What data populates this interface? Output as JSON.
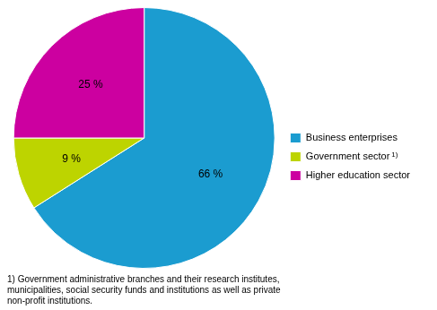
{
  "chart_data": {
    "type": "pie",
    "categories": [
      "Business enterprises",
      "Government sector",
      "Higher education sector"
    ],
    "values": [
      66,
      9,
      25
    ],
    "value_labels": [
      "66 %",
      "9 %",
      "25 %"
    ],
    "colors": [
      "#1B9CD0",
      "#BDD400",
      "#CC00A0"
    ],
    "data_labels": true,
    "legend": "right",
    "annotations": [
      {
        "text": "1)",
        "attached_to": "Government sector"
      },
      {
        "text": "1) Government administrative branches and their research institutes,\nmunicipalities, social security funds and institutions as well as private\nnon-profit institutions."
      }
    ]
  }
}
